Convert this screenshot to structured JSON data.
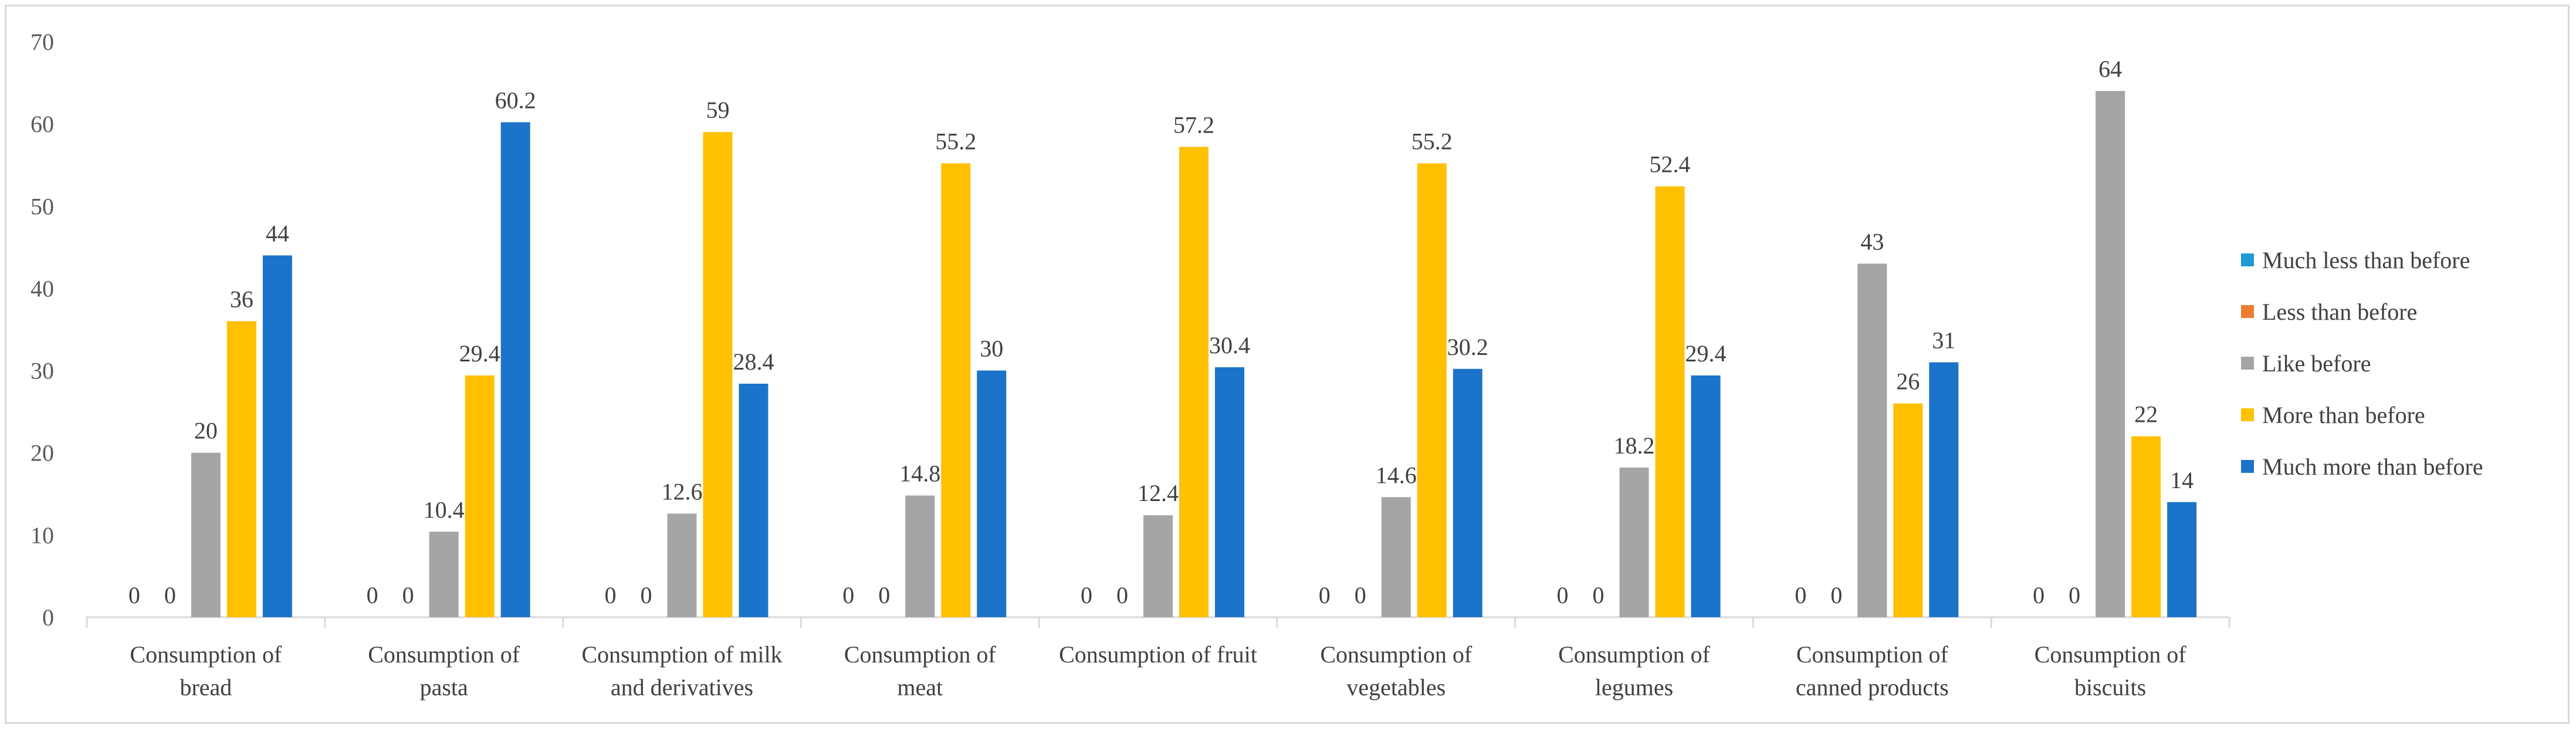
{
  "chart_data": {
    "type": "bar",
    "title": "",
    "xlabel": "",
    "ylabel": "",
    "ylim": [
      0,
      70
    ],
    "yticks": [
      0,
      10,
      20,
      30,
      40,
      50,
      60,
      70
    ],
    "grid": false,
    "legend_position": "right",
    "categories": [
      [
        "Consumption of",
        "bread"
      ],
      [
        "Consumption of",
        "pasta"
      ],
      [
        "Consumption of milk",
        "and derivatives"
      ],
      [
        "Consumption of",
        "meat"
      ],
      [
        "Consumption of fruit"
      ],
      [
        "Consumption of",
        "vegetables"
      ],
      [
        "Consumption of",
        "legumes"
      ],
      [
        "Consumption of",
        "canned products"
      ],
      [
        "Consumption of",
        "biscuits"
      ]
    ],
    "series": [
      {
        "name": "Much less than before",
        "color": "#1f9ad6",
        "values": [
          0,
          0,
          0,
          0,
          0,
          0,
          0,
          0,
          0
        ],
        "labels": [
          "0",
          "0",
          "0",
          "0",
          "0",
          "0",
          "0",
          "0",
          "0"
        ]
      },
      {
        "name": "Less than before",
        "color": "#ed7d31",
        "values": [
          0,
          0,
          0,
          0,
          0,
          0,
          0,
          0,
          0
        ],
        "labels": [
          "0",
          "0",
          "0",
          "0",
          "0",
          "0",
          "0",
          "0",
          "0"
        ]
      },
      {
        "name": "Like before",
        "color": "#a5a5a5",
        "values": [
          20,
          10.4,
          12.6,
          14.8,
          12.4,
          14.6,
          18.2,
          43,
          64
        ],
        "labels": [
          "20",
          "10.4",
          "12.6",
          "14.8",
          "12.4",
          "14.6",
          "18.2",
          "43",
          "64"
        ]
      },
      {
        "name": "More than before",
        "color": "#ffc000",
        "values": [
          36,
          29.4,
          59,
          55.2,
          57.2,
          55.2,
          52.4,
          26,
          22
        ],
        "labels": [
          "36",
          "29.4",
          "59",
          "55.2",
          "57.2",
          "55.2",
          "52.4",
          "26",
          "22"
        ]
      },
      {
        "name": "Much more than before",
        "color": "#1b74c9",
        "values": [
          44,
          60.2,
          28.4,
          30,
          30.4,
          30.2,
          29.4,
          31,
          14
        ],
        "labels": [
          "44",
          "60.2",
          "28.4",
          "30",
          "30.4",
          "30.2",
          "29.4",
          "31",
          "14"
        ]
      }
    ]
  }
}
